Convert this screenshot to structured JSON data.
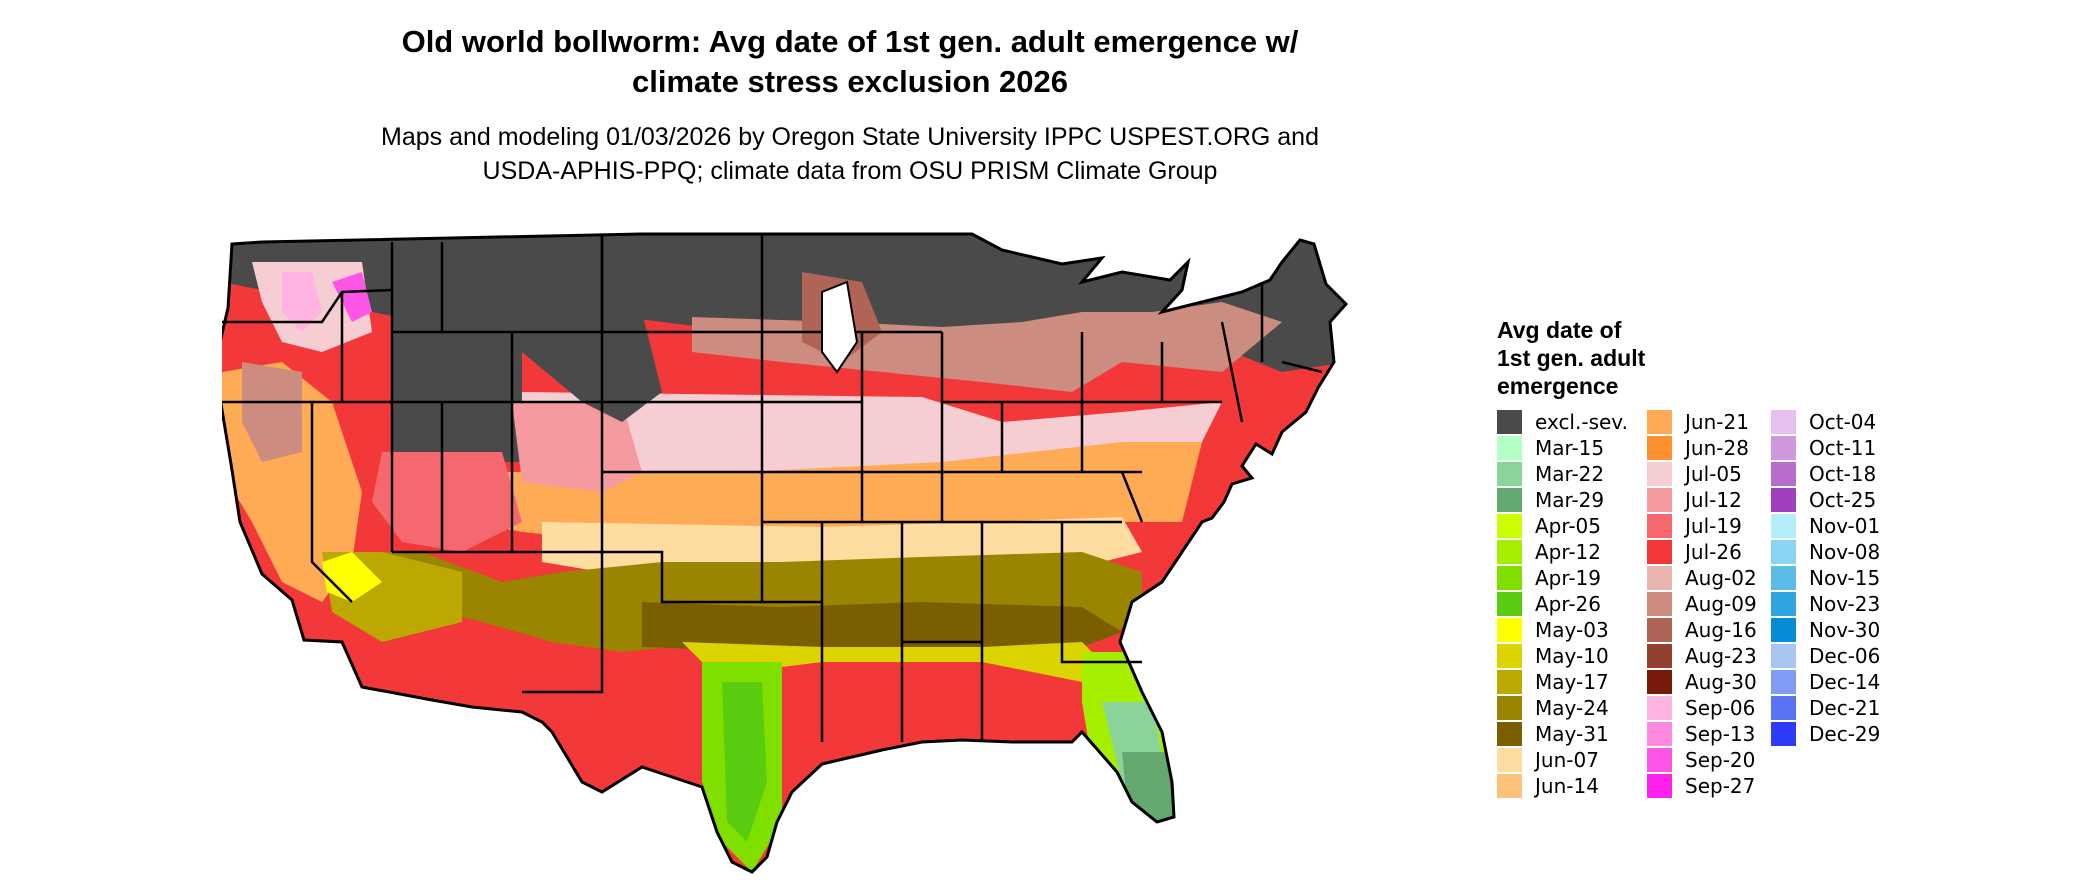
{
  "title": {
    "line1": "Old world bollworm: Avg date of 1st gen. adult emergence w/",
    "line2": "climate stress exclusion 2026"
  },
  "subtitle": {
    "line1": "Maps and modeling 01/03/2026 by Oregon State University IPPC USPEST.ORG and",
    "line2": "USDA-APHIS-PPQ; climate data from OSU PRISM Climate Group"
  },
  "map": {
    "region": "Contiguous United States",
    "boundaries": "state"
  },
  "legend": {
    "title_line1": "Avg date of",
    "title_line2": "1st gen. adult",
    "title_line3": "emergence",
    "items": [
      {
        "label": "excl.-sev.",
        "color": "#4a4a4a"
      },
      {
        "label": "Mar-15",
        "color": "#b3ffc6"
      },
      {
        "label": "Mar-22",
        "color": "#8ad49a"
      },
      {
        "label": "Mar-29",
        "color": "#63a86e"
      },
      {
        "label": "Apr-05",
        "color": "#c9ff00"
      },
      {
        "label": "Apr-12",
        "color": "#a6ee00"
      },
      {
        "label": "Apr-19",
        "color": "#7fe000"
      },
      {
        "label": "Apr-26",
        "color": "#5acc10"
      },
      {
        "label": "May-03",
        "color": "#ffff00"
      },
      {
        "label": "May-10",
        "color": "#dcd400"
      },
      {
        "label": "May-17",
        "color": "#bca800"
      },
      {
        "label": "May-24",
        "color": "#9a8400"
      },
      {
        "label": "May-31",
        "color": "#7a5e00"
      },
      {
        "label": "Jun-07",
        "color": "#ffdca0"
      },
      {
        "label": "Jun-14",
        "color": "#ffc27a"
      },
      {
        "label": "Jun-21",
        "color": "#ffab55"
      },
      {
        "label": "Jun-28",
        "color": "#ff9030"
      },
      {
        "label": "Jul-05",
        "color": "#f5cdd2"
      },
      {
        "label": "Jul-12",
        "color": "#f59aa0"
      },
      {
        "label": "Jul-19",
        "color": "#f56870"
      },
      {
        "label": "Jul-26",
        "color": "#f23838"
      },
      {
        "label": "Aug-02",
        "color": "#e8b6ad"
      },
      {
        "label": "Aug-09",
        "color": "#cc8c80"
      },
      {
        "label": "Aug-16",
        "color": "#b06456"
      },
      {
        "label": "Aug-23",
        "color": "#944030"
      },
      {
        "label": "Aug-30",
        "color": "#781a0a"
      },
      {
        "label": "Sep-06",
        "color": "#ffb3e0"
      },
      {
        "label": "Sep-13",
        "color": "#ff88e0"
      },
      {
        "label": "Sep-20",
        "color": "#ff55e6"
      },
      {
        "label": "Sep-27",
        "color": "#ff22ee"
      },
      {
        "label": "Oct-04",
        "color": "#e6c0ee"
      },
      {
        "label": "Oct-11",
        "color": "#d096de"
      },
      {
        "label": "Oct-18",
        "color": "#b86ccc"
      },
      {
        "label": "Oct-25",
        "color": "#a040bc"
      },
      {
        "label": "Nov-01",
        "color": "#b3ecfb"
      },
      {
        "label": "Nov-08",
        "color": "#88d4f2"
      },
      {
        "label": "Nov-15",
        "color": "#5cbce8"
      },
      {
        "label": "Nov-23",
        "color": "#30a4de"
      },
      {
        "label": "Nov-30",
        "color": "#048cd4"
      },
      {
        "label": "Dec-06",
        "color": "#a8c4f0"
      },
      {
        "label": "Dec-14",
        "color": "#809cf2"
      },
      {
        "label": "Dec-21",
        "color": "#5874f4"
      },
      {
        "label": "Dec-29",
        "color": "#2c3cf6"
      }
    ]
  }
}
